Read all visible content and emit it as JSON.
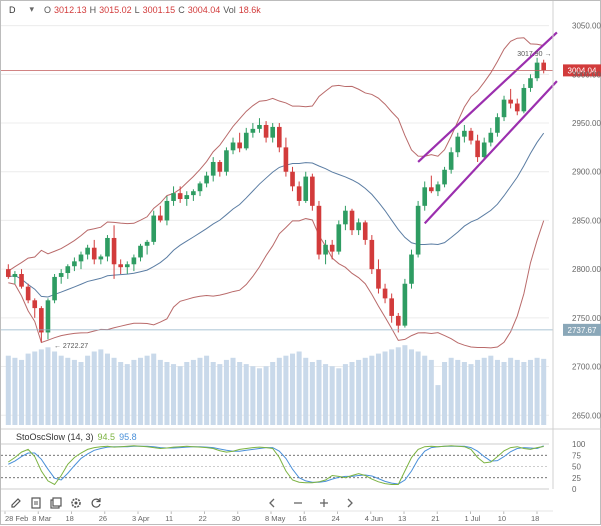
{
  "header": {
    "interval": "D",
    "ohlc": [
      {
        "label": "O",
        "value": "3012.13"
      },
      {
        "label": "H",
        "value": "3015.02"
      },
      {
        "label": "L",
        "value": "3001.15"
      },
      {
        "label": "C",
        "value": "3004.04"
      },
      {
        "label": "Vol",
        "value": "18.6k"
      }
    ]
  },
  "indicator": {
    "name": "StoOscSlow (14, 3)",
    "k_value": "94.5",
    "d_value": "95.8",
    "k_color": "#7cb342",
    "d_color": "#4a90d9",
    "levels": [
      "100",
      "75",
      "50",
      "25",
      "0"
    ]
  },
  "price_axis": {
    "ticks": [
      "3050.00",
      "3000.00",
      "2950.00",
      "2900.00",
      "2850.00",
      "2800.00",
      "2750.00",
      "2700.00",
      "2650.00"
    ],
    "current_price": "3004.04",
    "low_marker": "2737.67"
  },
  "time_axis": {
    "ticks": [
      "28 Feb",
      "8 Mar",
      "18",
      "26",
      "3 Apr",
      "11",
      "22",
      "30",
      "8 May",
      "16",
      "24",
      "4 Jun",
      "13",
      "21",
      "1 Jul",
      "10",
      "18"
    ]
  },
  "annotations": {
    "low_label": "2722.27",
    "high_label": "3017.90"
  },
  "colors": {
    "up": "#2e9c62",
    "down": "#d23b3b",
    "bollinger_outer": "#b96a6a",
    "bollinger_mid": "#5b7da3",
    "channel": "#9b2fae",
    "volume": "#c9d9ea"
  },
  "toolbar": {
    "icons": [
      "pencil-icon",
      "document-icon",
      "layers-icon",
      "settings-icon",
      "refresh-icon",
      "left-icon",
      "minus-icon",
      "plus-icon",
      "right-icon"
    ]
  },
  "chart_data": {
    "type": "candlestick",
    "price_range": [
      2640,
      3065
    ],
    "candles": [
      [
        2800,
        2805,
        2790,
        2792
      ],
      [
        2792,
        2798,
        2785,
        2795
      ],
      [
        2795,
        2800,
        2780,
        2782
      ],
      [
        2782,
        2785,
        2765,
        2768
      ],
      [
        2768,
        2770,
        2750,
        2760
      ],
      [
        2760,
        2762,
        2725,
        2735
      ],
      [
        2735,
        2770,
        2728,
        2768
      ],
      [
        2768,
        2795,
        2765,
        2792
      ],
      [
        2792,
        2800,
        2785,
        2796
      ],
      [
        2796,
        2805,
        2790,
        2803
      ],
      [
        2803,
        2812,
        2798,
        2808
      ],
      [
        2808,
        2818,
        2800,
        2815
      ],
      [
        2815,
        2825,
        2810,
        2822
      ],
      [
        2822,
        2830,
        2805,
        2810
      ],
      [
        2810,
        2815,
        2805,
        2813
      ],
      [
        2813,
        2835,
        2808,
        2832
      ],
      [
        2832,
        2845,
        2790,
        2805
      ],
      [
        2805,
        2810,
        2795,
        2802
      ],
      [
        2802,
        2808,
        2795,
        2805
      ],
      [
        2805,
        2815,
        2798,
        2812
      ],
      [
        2812,
        2826,
        2808,
        2824
      ],
      [
        2824,
        2830,
        2815,
        2828
      ],
      [
        2828,
        2860,
        2825,
        2855
      ],
      [
        2855,
        2865,
        2848,
        2850
      ],
      [
        2850,
        2875,
        2845,
        2870
      ],
      [
        2870,
        2885,
        2865,
        2878
      ],
      [
        2878,
        2885,
        2868,
        2872
      ],
      [
        2872,
        2880,
        2865,
        2876
      ],
      [
        2876,
        2882,
        2870,
        2880
      ],
      [
        2880,
        2890,
        2875,
        2888
      ],
      [
        2888,
        2900,
        2884,
        2896
      ],
      [
        2896,
        2915,
        2890,
        2910
      ],
      [
        2910,
        2912,
        2895,
        2900
      ],
      [
        2900,
        2925,
        2896,
        2922
      ],
      [
        2922,
        2935,
        2918,
        2930
      ],
      [
        2930,
        2940,
        2920,
        2924
      ],
      [
        2924,
        2945,
        2922,
        2940
      ],
      [
        2940,
        2950,
        2935,
        2944
      ],
      [
        2944,
        2955,
        2940,
        2948
      ],
      [
        2948,
        2952,
        2930,
        2935
      ],
      [
        2935,
        2950,
        2930,
        2946
      ],
      [
        2946,
        2950,
        2920,
        2925
      ],
      [
        2925,
        2935,
        2895,
        2900
      ],
      [
        2900,
        2905,
        2880,
        2885
      ],
      [
        2885,
        2890,
        2865,
        2870
      ],
      [
        2870,
        2900,
        2868,
        2895
      ],
      [
        2895,
        2898,
        2860,
        2865
      ],
      [
        2865,
        2870,
        2810,
        2815
      ],
      [
        2815,
        2830,
        2805,
        2825
      ],
      [
        2825,
        2830,
        2810,
        2818
      ],
      [
        2818,
        2850,
        2815,
        2846
      ],
      [
        2846,
        2865,
        2840,
        2860
      ],
      [
        2860,
        2862,
        2835,
        2840
      ],
      [
        2840,
        2852,
        2835,
        2848
      ],
      [
        2848,
        2850,
        2825,
        2830
      ],
      [
        2830,
        2835,
        2795,
        2800
      ],
      [
        2800,
        2810,
        2775,
        2780
      ],
      [
        2780,
        2785,
        2765,
        2770
      ],
      [
        2770,
        2775,
        2745,
        2752
      ],
      [
        2752,
        2755,
        2735,
        2742
      ],
      [
        2742,
        2790,
        2740,
        2785
      ],
      [
        2785,
        2820,
        2780,
        2815
      ],
      [
        2815,
        2870,
        2812,
        2865
      ],
      [
        2865,
        2890,
        2860,
        2884
      ],
      [
        2884,
        2896,
        2878,
        2880
      ],
      [
        2880,
        2890,
        2875,
        2887
      ],
      [
        2887,
        2905,
        2884,
        2902
      ],
      [
        2902,
        2925,
        2898,
        2920
      ],
      [
        2920,
        2940,
        2915,
        2936
      ],
      [
        2936,
        2948,
        2930,
        2942
      ],
      [
        2942,
        2945,
        2928,
        2932
      ],
      [
        2932,
        2938,
        2910,
        2915
      ],
      [
        2915,
        2935,
        2912,
        2930
      ],
      [
        2930,
        2945,
        2926,
        2940
      ],
      [
        2940,
        2960,
        2936,
        2956
      ],
      [
        2956,
        2978,
        2952,
        2974
      ],
      [
        2974,
        2985,
        2965,
        2970
      ],
      [
        2970,
        2975,
        2958,
        2962
      ],
      [
        2962,
        2990,
        2960,
        2986
      ],
      [
        2986,
        3000,
        2982,
        2996
      ],
      [
        2996,
        3017,
        2993,
        3012
      ],
      [
        3012,
        3015,
        3001,
        3004
      ]
    ],
    "volume": [
      66,
      64,
      62,
      68,
      70,
      72,
      74,
      70,
      66,
      64,
      62,
      60,
      66,
      70,
      72,
      68,
      64,
      60,
      58,
      62,
      64,
      66,
      68,
      62,
      60,
      58,
      56,
      60,
      62,
      64,
      66,
      60,
      58,
      62,
      64,
      60,
      58,
      56,
      54,
      56,
      60,
      64,
      66,
      68,
      70,
      64,
      60,
      62,
      58,
      56,
      54,
      58,
      60,
      62,
      64,
      66,
      68,
      70,
      72,
      74,
      76,
      72,
      70,
      66,
      62,
      38,
      60,
      64,
      62,
      60,
      58,
      62,
      64,
      66,
      62,
      60,
      64,
      62,
      60,
      62,
      64,
      63
    ],
    "sto_k": [
      60,
      70,
      82,
      88,
      72,
      40,
      18,
      10,
      30,
      55,
      70,
      80,
      88,
      92,
      94,
      95,
      93,
      94,
      95,
      96,
      95,
      94,
      92,
      90,
      91,
      93,
      94,
      95,
      94,
      93,
      92,
      90,
      85,
      82,
      84,
      88,
      90,
      92,
      93,
      92,
      90,
      70,
      40,
      20,
      15,
      14,
      14,
      16,
      20,
      30,
      28,
      25,
      30,
      34,
      30,
      22,
      16,
      12,
      10,
      10,
      40,
      70,
      88,
      94,
      95,
      94,
      95,
      96,
      95,
      94,
      88,
      70,
      58,
      60,
      72,
      85,
      92,
      94,
      90,
      88,
      92,
      94.5
    ],
    "sto_d": [
      55,
      62,
      72,
      80,
      80,
      66,
      44,
      24,
      20,
      35,
      52,
      68,
      78,
      86,
      90,
      93,
      94,
      94,
      94,
      95,
      95,
      95,
      94,
      92,
      91,
      91,
      92,
      93,
      94,
      94,
      93,
      92,
      89,
      86,
      84,
      84,
      86,
      88,
      90,
      92,
      92,
      84,
      68,
      44,
      25,
      18,
      15,
      15,
      17,
      22,
      26,
      28,
      28,
      30,
      31,
      29,
      23,
      17,
      13,
      11,
      20,
      40,
      66,
      84,
      92,
      94,
      95,
      95,
      95,
      95,
      92,
      84,
      72,
      62,
      63,
      72,
      83,
      90,
      92,
      91,
      90,
      95.8
    ]
  }
}
